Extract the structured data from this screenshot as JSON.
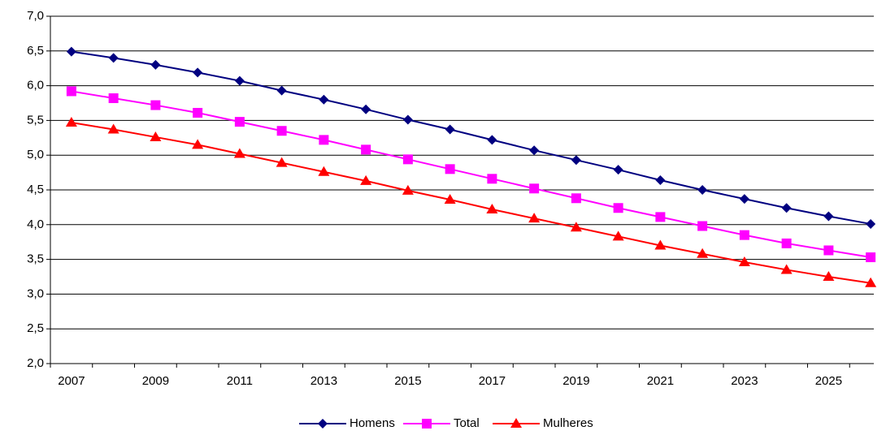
{
  "chart_data": {
    "type": "line",
    "categories": [
      "2007",
      null,
      "2009",
      null,
      "2011",
      null,
      "2013",
      null,
      "2015",
      null,
      "2017",
      null,
      "2019",
      null,
      "2021",
      null,
      "2023",
      null,
      "2025",
      null
    ],
    "series": [
      {
        "name": "Homens",
        "color": "#000080",
        "marker": "diamond",
        "values": [
          6.49,
          6.4,
          6.3,
          6.19,
          6.07,
          5.93,
          5.8,
          5.66,
          5.51,
          5.37,
          5.22,
          5.07,
          4.93,
          4.79,
          4.64,
          4.5,
          4.37,
          4.24,
          4.12,
          4.01
        ]
      },
      {
        "name": "Total",
        "color": "#FF00FF",
        "marker": "square",
        "values": [
          5.92,
          5.82,
          5.72,
          5.61,
          5.48,
          5.35,
          5.22,
          5.08,
          4.94,
          4.8,
          4.66,
          4.52,
          4.38,
          4.24,
          4.11,
          3.98,
          3.85,
          3.73,
          3.63,
          3.53
        ]
      },
      {
        "name": "Mulheres",
        "color": "#FF0000",
        "marker": "triangle",
        "values": [
          5.47,
          5.37,
          5.26,
          5.15,
          5.02,
          4.89,
          4.76,
          4.63,
          4.49,
          4.36,
          4.22,
          4.09,
          3.96,
          3.83,
          3.7,
          3.58,
          3.46,
          3.35,
          3.25,
          3.16
        ]
      }
    ],
    "ylim": [
      2,
      7
    ],
    "yticks": [
      {
        "value": 2,
        "label": "2,0"
      },
      {
        "value": 2.5,
        "label": "2,5"
      },
      {
        "value": 3,
        "label": "3,0"
      },
      {
        "value": 3.5,
        "label": "3,5"
      },
      {
        "value": 4,
        "label": "4,0"
      },
      {
        "value": 4.5,
        "label": "4,5"
      },
      {
        "value": 5,
        "label": "5,0"
      },
      {
        "value": 5.5,
        "label": "5,5"
      },
      {
        "value": 6,
        "label": "6,0"
      },
      {
        "value": 6.5,
        "label": "6,5"
      },
      {
        "value": 7,
        "label": "7,0"
      }
    ],
    "grid": true,
    "legend": "bottom"
  }
}
